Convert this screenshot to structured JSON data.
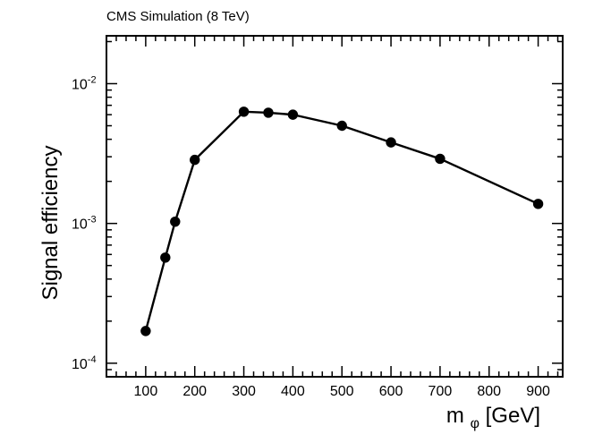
{
  "header": {
    "label": "CMS Simulation (8 TeV)"
  },
  "chart_data": {
    "type": "line",
    "title": "CMS Simulation (8 TeV)",
    "xlabel": "m_φ [GeV]",
    "xlabel_main": "m",
    "xlabel_sub": "φ",
    "xlabel_unit": " [GeV]",
    "ylabel": "Signal efficiency",
    "xlim": [
      20,
      950
    ],
    "ylim": [
      8e-05,
      0.022
    ],
    "yscale": "log",
    "grid": false,
    "x_ticks": [
      100,
      200,
      300,
      400,
      500,
      600,
      700,
      800,
      900
    ],
    "y_tick_labels": [
      {
        "value": 0.0001,
        "base": "10",
        "exp": "-4"
      },
      {
        "value": 0.001,
        "base": "10",
        "exp": "-3"
      },
      {
        "value": 0.01,
        "base": "10",
        "exp": "-2"
      }
    ],
    "series": [
      {
        "name": "Signal efficiency",
        "x": [
          100,
          140,
          160,
          200,
          300,
          350,
          400,
          500,
          600,
          700,
          900
        ],
        "y": [
          0.00017,
          0.00057,
          0.00103,
          0.00285,
          0.0063,
          0.0062,
          0.006,
          0.005,
          0.0038,
          0.0029,
          0.00138
        ],
        "color": "#000000",
        "marker": "circle"
      }
    ]
  }
}
